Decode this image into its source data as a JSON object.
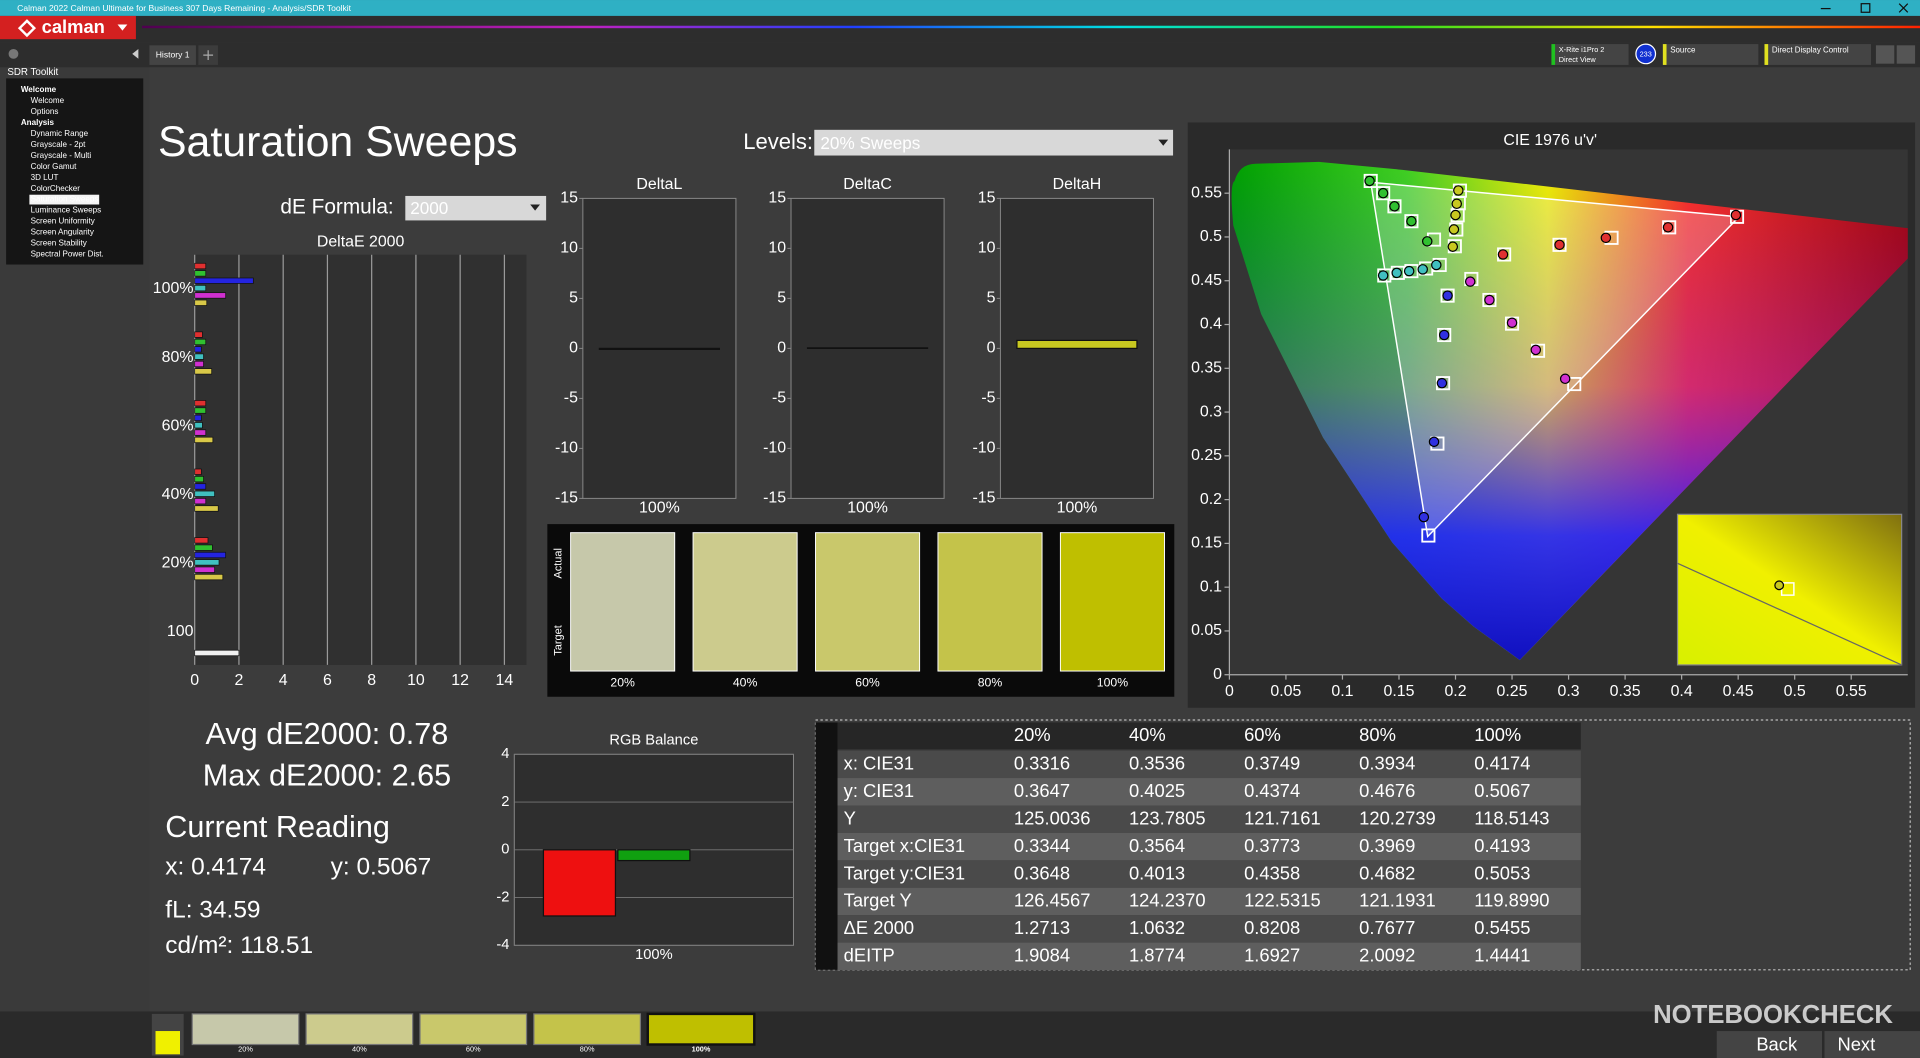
{
  "window": {
    "title": "Calman 2022 Calman Ultimate for Business 307 Days Remaining  - Analysis/SDR Toolkit",
    "logo": "calman"
  },
  "tabs": [
    "History 1"
  ],
  "devices": {
    "meter": "X-Rite i1Pro 2",
    "meter_mode": "Direct View",
    "badge": "233",
    "source": "Source",
    "display": "Direct Display Control"
  },
  "sidebar": {
    "title": "SDR Toolkit",
    "items": [
      "Welcome",
      "Welcome",
      "Options",
      "Analysis",
      "Dynamic Range",
      "Grayscale - 2pt",
      "Grayscale - Multi",
      "Color Gamut",
      "3D LUT",
      "ColorChecker",
      "Saturation Sweeps",
      "Luminance Sweeps",
      "Screen Uniformity",
      "Screen Angularity",
      "Screen Stability",
      "Spectral Power Dist."
    ],
    "groups": [
      0,
      3
    ],
    "selected": 10
  },
  "page": {
    "title": "Saturation Sweeps",
    "levels_label": "Levels:",
    "levels_value": "20% Sweeps",
    "formula_label": "dE Formula:",
    "formula_value": "2000"
  },
  "swatches": {
    "row_labels": [
      "Actual",
      "Target"
    ],
    "labels": [
      "20%",
      "40%",
      "60%",
      "80%",
      "100%"
    ],
    "colors": [
      "#c6c8aa",
      "#cccb8d",
      "#c9c86b",
      "#c4c34a",
      "#bfbf00"
    ]
  },
  "summary": {
    "avg": "Avg dE2000: 0.78",
    "max": "Max dE2000: 2.65",
    "reading_title": "Current Reading",
    "x": "x: 0.4174",
    "y": "y: 0.5067",
    "fl": "fL: 34.59",
    "cdm2": "cd/m²: 118.51"
  },
  "table": {
    "header": [
      "20%",
      "40%",
      "60%",
      "80%",
      "100%"
    ],
    "rows": [
      [
        "x: CIE31",
        "0.3316",
        "0.3536",
        "0.3749",
        "0.3934",
        "0.4174"
      ],
      [
        "y: CIE31",
        "0.3647",
        "0.4025",
        "0.4374",
        "0.4676",
        "0.5067"
      ],
      [
        "Y",
        "125.0036",
        "123.7805",
        "121.7161",
        "120.2739",
        "118.5143"
      ],
      [
        "Target x:CIE31",
        "0.3344",
        "0.3564",
        "0.3773",
        "0.3969",
        "0.4193"
      ],
      [
        "Target y:CIE31",
        "0.3648",
        "0.4013",
        "0.4358",
        "0.4682",
        "0.5053"
      ],
      [
        "Target Y",
        "126.4567",
        "124.2370",
        "122.5315",
        "121.1931",
        "119.8990"
      ],
      [
        "ΔE 2000",
        "1.2713",
        "1.0632",
        "0.8208",
        "0.7677",
        "0.5455"
      ],
      [
        "dEITP",
        "1.9084",
        "1.8774",
        "1.6927",
        "2.0092",
        "1.4441"
      ]
    ]
  },
  "footer": {
    "thumbnails": [
      "20%",
      "40%",
      "60%",
      "80%",
      "100%"
    ],
    "back": "Back",
    "next": "Next",
    "watermark": "NOTEBOOKCHECK"
  },
  "chart_data": [
    {
      "type": "hbar",
      "title": "DeltaE 2000",
      "categories": [
        "100%",
        "80%",
        "60%",
        "40%",
        "20%",
        "100"
      ],
      "series": [
        {
          "color": "#e03030",
          "values": [
            0.5,
            0.35,
            0.5,
            0.3,
            0.6,
            null
          ]
        },
        {
          "color": "#30c030",
          "values": [
            0.5,
            0.5,
            0.5,
            0.4,
            0.8,
            null
          ]
        },
        {
          "color": "#2424e0",
          "values": [
            2.65,
            0.3,
            0.3,
            0.5,
            1.4,
            null
          ]
        },
        {
          "color": "#40c0c0",
          "values": [
            0.5,
            0.4,
            0.35,
            0.9,
            1.1,
            null
          ]
        },
        {
          "color": "#d030d0",
          "values": [
            1.4,
            0.4,
            0.5,
            0.5,
            0.9,
            null
          ]
        },
        {
          "color": "#d8c848",
          "values": [
            0.5455,
            0.7677,
            0.8208,
            1.0632,
            1.2713,
            null
          ]
        },
        {
          "color": "#f0f0f0",
          "values": [
            null,
            null,
            null,
            null,
            null,
            2.0
          ]
        }
      ],
      "xlim": [
        0,
        15
      ],
      "xticks": [
        0,
        2,
        4,
        6,
        8,
        10,
        12,
        14
      ],
      "grid": true
    },
    {
      "type": "bar",
      "title": "DeltaL",
      "categories": [
        "100%"
      ],
      "values": [
        -0.1
      ],
      "color": "#c8c820",
      "ylim": [
        -15,
        15
      ],
      "yticks": [
        -15,
        -10,
        -5,
        0,
        5,
        10,
        15
      ]
    },
    {
      "type": "bar",
      "title": "DeltaC",
      "categories": [
        "100%"
      ],
      "values": [
        0.05
      ],
      "color": "#c8c820",
      "ylim": [
        -15,
        15
      ],
      "yticks": [
        -15,
        -10,
        -5,
        0,
        5,
        10,
        15
      ]
    },
    {
      "type": "bar",
      "title": "DeltaH",
      "categories": [
        "100%"
      ],
      "values": [
        0.8
      ],
      "color": "#c8c820",
      "ylim": [
        -15,
        15
      ],
      "yticks": [
        -15,
        -10,
        -5,
        0,
        5,
        10,
        15
      ]
    },
    {
      "type": "bar",
      "title": "RGB Balance",
      "categories": [
        "100%"
      ],
      "series": [
        {
          "color": "#ee1010",
          "values": [
            -2.77
          ]
        },
        {
          "color": "#10a010",
          "values": [
            -0.45
          ]
        },
        {
          "color": "#1010ee",
          "values": [
            0
          ]
        }
      ],
      "ylim": [
        -4,
        4
      ],
      "yticks": [
        -4,
        -2,
        0,
        2,
        4
      ],
      "grid": true
    },
    {
      "type": "scatter",
      "title": "CIE 1976 u'v'",
      "xlim": [
        0,
        0.6
      ],
      "ylim": [
        0,
        0.6
      ],
      "xticks": [
        0,
        0.05,
        0.1,
        0.15,
        0.2,
        0.25,
        0.3,
        0.35,
        0.4,
        0.45,
        0.5,
        0.55
      ],
      "yticks": [
        0,
        0.05,
        0.1,
        0.15,
        0.2,
        0.25,
        0.3,
        0.35,
        0.4,
        0.45,
        0.5,
        0.55
      ],
      "gamut": {
        "x": [
          0.4507,
          0.125,
          0.1754
        ],
        "y": [
          0.5229,
          0.5625,
          0.1579
        ]
      },
      "series": [
        {
          "marker": "square",
          "color": "#ffffff",
          "x": [
            0.243,
            0.292,
            0.338,
            0.389,
            0.449,
            0.181,
            0.161,
            0.146,
            0.136,
            0.125,
            0.193,
            0.19,
            0.189,
            0.184,
            0.176,
            0.186,
            0.174,
            0.161,
            0.149,
            0.137,
            0.214,
            0.23,
            0.25,
            0.273,
            0.305,
            0.1994,
            0.2007,
            0.2019,
            0.2029,
            0.2039
          ],
          "y": [
            0.48,
            0.491,
            0.499,
            0.511,
            0.523,
            0.497,
            0.518,
            0.535,
            0.55,
            0.564,
            0.433,
            0.388,
            0.333,
            0.264,
            0.159,
            0.468,
            0.464,
            0.461,
            0.459,
            0.456,
            0.452,
            0.428,
            0.401,
            0.37,
            0.332,
            0.4894,
            0.5085,
            0.5247,
            0.5385,
            0.5529
          ]
        },
        {
          "marker": "circle",
          "color": "#e03030",
          "x": [
            0.242,
            0.292,
            0.333,
            0.388,
            0.448
          ],
          "y": [
            0.48,
            0.491,
            0.499,
            0.511,
            0.525
          ]
        },
        {
          "marker": "circle",
          "color": "#30c030",
          "x": [
            0.175,
            0.161,
            0.146,
            0.136,
            0.124
          ],
          "y": [
            0.495,
            0.518,
            0.535,
            0.55,
            0.564
          ]
        },
        {
          "marker": "circle",
          "color": "#3030e0",
          "x": [
            0.193,
            0.19,
            0.188,
            0.181,
            0.172
          ],
          "y": [
            0.433,
            0.388,
            0.333,
            0.266,
            0.18
          ]
        },
        {
          "marker": "circle",
          "color": "#40c0c0",
          "x": [
            0.183,
            0.171,
            0.159,
            0.148,
            0.136
          ],
          "y": [
            0.468,
            0.463,
            0.461,
            0.459,
            0.456
          ]
        },
        {
          "marker": "circle",
          "color": "#d030d0",
          "x": [
            0.213,
            0.23,
            0.25,
            0.271,
            0.297
          ],
          "y": [
            0.449,
            0.428,
            0.402,
            0.371,
            0.338
          ]
        },
        {
          "marker": "circle",
          "color": "#c8c820",
          "x": [
            0.1976,
            0.1986,
            0.2,
            0.2011,
            0.2025
          ],
          "y": [
            0.4889,
            0.5086,
            0.525,
            0.5379,
            0.5531
          ]
        }
      ]
    }
  ]
}
